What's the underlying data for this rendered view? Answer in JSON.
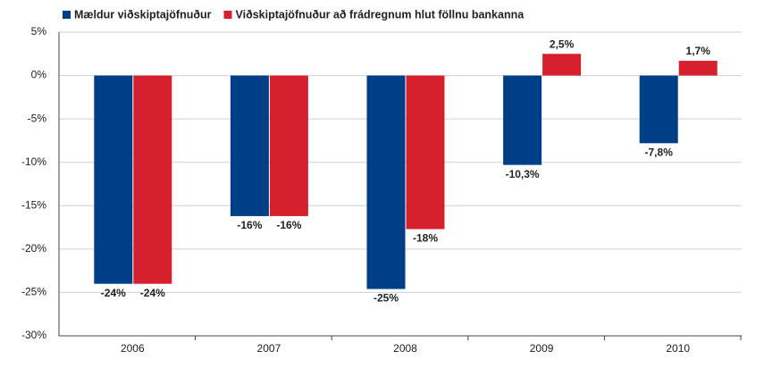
{
  "chart_data": {
    "type": "bar",
    "categories": [
      "2006",
      "2007",
      "2008",
      "2009",
      "2010"
    ],
    "series": [
      {
        "name": "Mældur viðskiptajöfnuður",
        "color": "#003f87",
        "values": [
          -24,
          -16.2,
          -24.6,
          -10.3,
          -7.8
        ],
        "value_labels": [
          "-24%",
          "-16%",
          "-25%",
          "-10,3%",
          "-7,8%"
        ]
      },
      {
        "name": "Viðskiptajöfnuður að frádregnum hlut föllnu bankanna",
        "color": "#d7202e",
        "values": [
          -24,
          -16.2,
          -17.7,
          2.5,
          1.7
        ],
        "value_labels": [
          "-24%",
          "-16%",
          "-18%",
          "2,5%",
          "1,7%"
        ]
      }
    ],
    "ylim": [
      -30,
      5
    ],
    "yticks": [
      {
        "value": 5,
        "label": "5%"
      },
      {
        "value": 0,
        "label": "0%"
      },
      {
        "value": -5,
        "label": "-5%"
      },
      {
        "value": -10,
        "label": "-10%"
      },
      {
        "value": -15,
        "label": "-15%"
      },
      {
        "value": -20,
        "label": "-20%"
      },
      {
        "value": -25,
        "label": "-25%"
      },
      {
        "value": -30,
        "label": "-30%"
      }
    ],
    "grid": true,
    "legend": "top-left"
  }
}
